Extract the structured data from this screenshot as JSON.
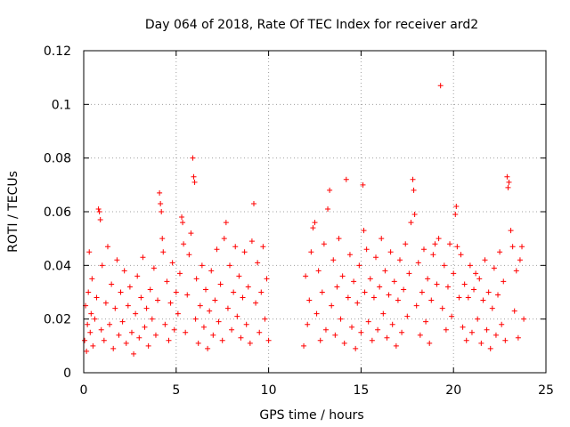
{
  "chart_data": {
    "type": "scatter",
    "title": "Day 064 of 2018, Rate Of TEC Index for receiver ard2",
    "xlabel": "GPS time / hours",
    "ylabel": "ROTI / TECUs",
    "xlim": [
      0,
      25
    ],
    "ylim": [
      0,
      0.12
    ],
    "xticks": [
      0,
      5,
      10,
      15,
      20,
      25
    ],
    "xtick_labels": [
      "0",
      "5",
      "10",
      "15",
      "20",
      "25"
    ],
    "yticks": [
      0,
      0.02,
      0.04,
      0.06,
      0.08,
      0.1,
      0.12
    ],
    "ytick_labels": [
      "0",
      "0.02",
      "0.04",
      "0.06",
      "0.08",
      "0.1",
      "0.12"
    ],
    "grid": true,
    "marker": "+",
    "color": "#ff0000",
    "series": [
      {
        "name": "ROTI",
        "points": [
          [
            0.05,
            0.012
          ],
          [
            0.1,
            0.025
          ],
          [
            0.15,
            0.008
          ],
          [
            0.2,
            0.018
          ],
          [
            0.25,
            0.03
          ],
          [
            0.3,
            0.045
          ],
          [
            0.35,
            0.015
          ],
          [
            0.4,
            0.022
          ],
          [
            0.45,
            0.035
          ],
          [
            0.5,
            0.01
          ],
          [
            0.6,
            0.02
          ],
          [
            0.7,
            0.028
          ],
          [
            0.8,
            0.061
          ],
          [
            0.85,
            0.06
          ],
          [
            0.9,
            0.057
          ],
          [
            0.95,
            0.016
          ],
          [
            1.0,
            0.04
          ],
          [
            1.1,
            0.012
          ],
          [
            1.2,
            0.026
          ],
          [
            1.3,
            0.047
          ],
          [
            1.4,
            0.018
          ],
          [
            1.5,
            0.033
          ],
          [
            1.6,
            0.009
          ],
          [
            1.7,
            0.024
          ],
          [
            1.8,
            0.042
          ],
          [
            1.9,
            0.014
          ],
          [
            2.0,
            0.03
          ],
          [
            2.1,
            0.019
          ],
          [
            2.2,
            0.038
          ],
          [
            2.3,
            0.011
          ],
          [
            2.4,
            0.025
          ],
          [
            2.5,
            0.032
          ],
          [
            2.6,
            0.015
          ],
          [
            2.7,
            0.007
          ],
          [
            2.8,
            0.022
          ],
          [
            2.9,
            0.036
          ],
          [
            3.0,
            0.013
          ],
          [
            3.1,
            0.028
          ],
          [
            3.2,
            0.043
          ],
          [
            3.3,
            0.017
          ],
          [
            3.4,
            0.024
          ],
          [
            3.5,
            0.01
          ],
          [
            3.6,
            0.031
          ],
          [
            3.7,
            0.02
          ],
          [
            3.8,
            0.039
          ],
          [
            3.9,
            0.014
          ],
          [
            4.0,
            0.027
          ],
          [
            4.1,
            0.067
          ],
          [
            4.15,
            0.063
          ],
          [
            4.2,
            0.06
          ],
          [
            4.25,
            0.05
          ],
          [
            4.3,
            0.045
          ],
          [
            4.4,
            0.018
          ],
          [
            4.5,
            0.034
          ],
          [
            4.6,
            0.012
          ],
          [
            4.7,
            0.026
          ],
          [
            4.8,
            0.041
          ],
          [
            4.9,
            0.016
          ],
          [
            5.0,
            0.03
          ],
          [
            5.1,
            0.022
          ],
          [
            5.2,
            0.037
          ],
          [
            5.3,
            0.058
          ],
          [
            5.35,
            0.056
          ],
          [
            5.4,
            0.048
          ],
          [
            5.5,
            0.015
          ],
          [
            5.6,
            0.029
          ],
          [
            5.7,
            0.044
          ],
          [
            5.8,
            0.052
          ],
          [
            5.9,
            0.08
          ],
          [
            5.95,
            0.073
          ],
          [
            6.0,
            0.071
          ],
          [
            6.05,
            0.02
          ],
          [
            6.1,
            0.035
          ],
          [
            6.2,
            0.011
          ],
          [
            6.3,
            0.025
          ],
          [
            6.4,
            0.04
          ],
          [
            6.5,
            0.017
          ],
          [
            6.6,
            0.031
          ],
          [
            6.7,
            0.009
          ],
          [
            6.8,
            0.023
          ],
          [
            6.9,
            0.038
          ],
          [
            7.0,
            0.014
          ],
          [
            7.1,
            0.027
          ],
          [
            7.2,
            0.046
          ],
          [
            7.3,
            0.019
          ],
          [
            7.4,
            0.033
          ],
          [
            7.5,
            0.012
          ],
          [
            7.6,
            0.05
          ],
          [
            7.7,
            0.056
          ],
          [
            7.8,
            0.024
          ],
          [
            7.9,
            0.04
          ],
          [
            8.0,
            0.016
          ],
          [
            8.1,
            0.03
          ],
          [
            8.2,
            0.047
          ],
          [
            8.3,
            0.021
          ],
          [
            8.4,
            0.036
          ],
          [
            8.5,
            0.013
          ],
          [
            8.6,
            0.028
          ],
          [
            8.7,
            0.045
          ],
          [
            8.8,
            0.018
          ],
          [
            8.9,
            0.032
          ],
          [
            9.0,
            0.011
          ],
          [
            9.1,
            0.049
          ],
          [
            9.2,
            0.063
          ],
          [
            9.3,
            0.026
          ],
          [
            9.4,
            0.041
          ],
          [
            9.5,
            0.015
          ],
          [
            9.6,
            0.03
          ],
          [
            9.7,
            0.047
          ],
          [
            9.8,
            0.02
          ],
          [
            9.9,
            0.035
          ],
          [
            10.0,
            0.012
          ],
          [
            11.9,
            0.01
          ],
          [
            12.0,
            0.036
          ],
          [
            12.1,
            0.018
          ],
          [
            12.2,
            0.027
          ],
          [
            12.3,
            0.045
          ],
          [
            12.4,
            0.054
          ],
          [
            12.5,
            0.056
          ],
          [
            12.6,
            0.022
          ],
          [
            12.7,
            0.038
          ],
          [
            12.8,
            0.012
          ],
          [
            12.9,
            0.03
          ],
          [
            13.0,
            0.048
          ],
          [
            13.1,
            0.016
          ],
          [
            13.2,
            0.061
          ],
          [
            13.3,
            0.068
          ],
          [
            13.4,
            0.025
          ],
          [
            13.5,
            0.042
          ],
          [
            13.6,
            0.014
          ],
          [
            13.7,
            0.032
          ],
          [
            13.8,
            0.05
          ],
          [
            13.9,
            0.02
          ],
          [
            14.0,
            0.036
          ],
          [
            14.1,
            0.011
          ],
          [
            14.2,
            0.072
          ],
          [
            14.3,
            0.028
          ],
          [
            14.4,
            0.044
          ],
          [
            14.5,
            0.017
          ],
          [
            14.6,
            0.034
          ],
          [
            14.7,
            0.009
          ],
          [
            14.8,
            0.026
          ],
          [
            14.9,
            0.04
          ],
          [
            15.0,
            0.015
          ],
          [
            15.1,
            0.07
          ],
          [
            15.15,
            0.053
          ],
          [
            15.2,
            0.03
          ],
          [
            15.3,
            0.046
          ],
          [
            15.4,
            0.019
          ],
          [
            15.5,
            0.035
          ],
          [
            15.6,
            0.012
          ],
          [
            15.7,
            0.028
          ],
          [
            15.8,
            0.043
          ],
          [
            15.9,
            0.016
          ],
          [
            16.0,
            0.032
          ],
          [
            16.1,
            0.05
          ],
          [
            16.2,
            0.022
          ],
          [
            16.3,
            0.038
          ],
          [
            16.4,
            0.013
          ],
          [
            16.5,
            0.029
          ],
          [
            16.6,
            0.045
          ],
          [
            16.7,
            0.018
          ],
          [
            16.8,
            0.034
          ],
          [
            16.9,
            0.01
          ],
          [
            17.0,
            0.027
          ],
          [
            17.1,
            0.042
          ],
          [
            17.2,
            0.015
          ],
          [
            17.3,
            0.031
          ],
          [
            17.4,
            0.048
          ],
          [
            17.5,
            0.021
          ],
          [
            17.6,
            0.037
          ],
          [
            17.7,
            0.056
          ],
          [
            17.8,
            0.072
          ],
          [
            17.85,
            0.068
          ],
          [
            17.9,
            0.059
          ],
          [
            18.0,
            0.025
          ],
          [
            18.1,
            0.041
          ],
          [
            18.2,
            0.014
          ],
          [
            18.3,
            0.03
          ],
          [
            18.4,
            0.046
          ],
          [
            18.5,
            0.019
          ],
          [
            18.6,
            0.035
          ],
          [
            18.7,
            0.011
          ],
          [
            18.8,
            0.027
          ],
          [
            18.9,
            0.044
          ],
          [
            19.0,
            0.048
          ],
          [
            19.1,
            0.033
          ],
          [
            19.2,
            0.05
          ],
          [
            19.3,
            0.107
          ],
          [
            19.4,
            0.024
          ],
          [
            19.5,
            0.04
          ],
          [
            19.6,
            0.016
          ],
          [
            19.7,
            0.032
          ],
          [
            19.8,
            0.048
          ],
          [
            19.9,
            0.021
          ],
          [
            20.0,
            0.037
          ],
          [
            20.1,
            0.059
          ],
          [
            20.15,
            0.062
          ],
          [
            20.2,
            0.047
          ],
          [
            20.3,
            0.028
          ],
          [
            20.4,
            0.044
          ],
          [
            20.5,
            0.017
          ],
          [
            20.6,
            0.033
          ],
          [
            20.7,
            0.012
          ],
          [
            20.8,
            0.028
          ],
          [
            20.9,
            0.04
          ],
          [
            21.0,
            0.015
          ],
          [
            21.1,
            0.031
          ],
          [
            21.2,
            0.037
          ],
          [
            21.3,
            0.02
          ],
          [
            21.4,
            0.035
          ],
          [
            21.5,
            0.011
          ],
          [
            21.6,
            0.027
          ],
          [
            21.7,
            0.042
          ],
          [
            21.8,
            0.016
          ],
          [
            21.9,
            0.03
          ],
          [
            22.0,
            0.009
          ],
          [
            22.1,
            0.024
          ],
          [
            22.2,
            0.039
          ],
          [
            22.3,
            0.014
          ],
          [
            22.4,
            0.029
          ],
          [
            22.5,
            0.045
          ],
          [
            22.6,
            0.018
          ],
          [
            22.7,
            0.034
          ],
          [
            22.8,
            0.012
          ],
          [
            22.9,
            0.073
          ],
          [
            22.95,
            0.069
          ],
          [
            23.0,
            0.071
          ],
          [
            23.1,
            0.053
          ],
          [
            23.2,
            0.047
          ],
          [
            23.3,
            0.023
          ],
          [
            23.4,
            0.038
          ],
          [
            23.5,
            0.013
          ],
          [
            23.6,
            0.042
          ],
          [
            23.7,
            0.047
          ],
          [
            23.8,
            0.02
          ]
        ]
      }
    ]
  }
}
